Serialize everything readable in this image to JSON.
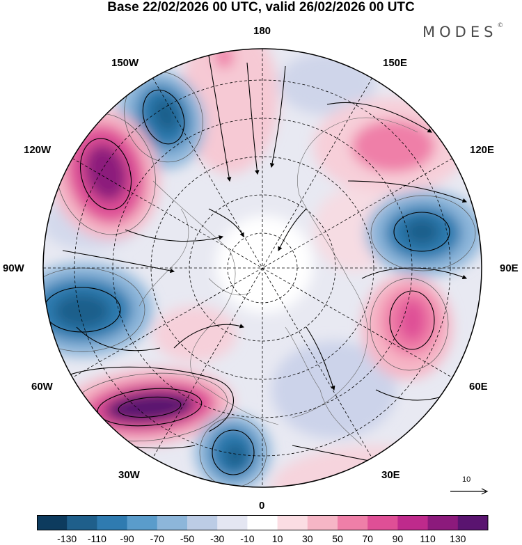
{
  "title": "Base 22/02/2026 00 UTC, valid 26/02/2026 00 UTC",
  "logo": {
    "text": "MODES",
    "mark": "©"
  },
  "longitude_labels": {
    "top": "180",
    "top_left": "150W",
    "top_right": "150E",
    "upper_left": "120W",
    "upper_right": "120E",
    "left": "90W",
    "right": "90E",
    "lower_left": "60W",
    "lower_right": "60E",
    "bottom_left": "30W",
    "bottom_right": "30E",
    "bottom": "0"
  },
  "reference_vector": {
    "label": "10"
  },
  "colorbar": {
    "ticks": [
      "-130",
      "-110",
      "-90",
      "-70",
      "-50",
      "-30",
      "-10",
      "10",
      "30",
      "50",
      "70",
      "90",
      "110",
      "130"
    ],
    "colors": [
      "#0d3b5e",
      "#1f5f8b",
      "#2f7bb0",
      "#5a9ccb",
      "#8db6da",
      "#bccce5",
      "#e4e6f2",
      "#ffffff",
      "#fbdde3",
      "#f6b6c6",
      "#ef7fa8",
      "#df4f96",
      "#bf2a8c",
      "#8c1a7c",
      "#5a1470"
    ]
  },
  "colors": {
    "neg_strong": "#1f5f8b",
    "neg_mid": "#5a9ccb",
    "neg_light": "#bccce5",
    "pos_strong": "#8c1a7c",
    "pos_mid": "#df4f96",
    "pos_light": "#f6b6c6"
  }
}
